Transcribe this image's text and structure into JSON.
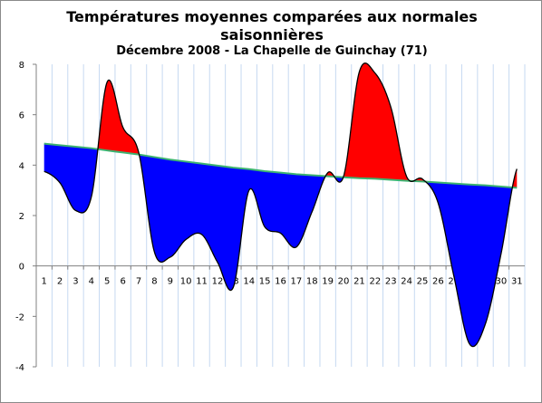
{
  "chart_data": {
    "type": "area",
    "title": "Températures moyennes comparées aux normales saisonnières",
    "subtitle": "Décembre 2008 - La Chapelle de Guinchay (71)",
    "xlabel": "",
    "ylabel": "",
    "ylim": [
      -4,
      8
    ],
    "yticks": [
      -4,
      -2,
      0,
      2,
      4,
      6,
      8
    ],
    "grid": true,
    "categories": [
      "1",
      "2",
      "3",
      "4",
      "5",
      "6",
      "7",
      "8",
      "9",
      "10",
      "11",
      "12",
      "13",
      "14",
      "15",
      "16",
      "17",
      "18",
      "19",
      "20",
      "21",
      "22",
      "23",
      "24",
      "25",
      "26",
      "27",
      "28",
      "29",
      "30",
      "31"
    ],
    "series": [
      {
        "values": [
          3.75,
          3.3,
          2.2,
          2.75,
          7.3,
          5.5,
          4.5,
          0.55,
          0.35,
          1.05,
          1.25,
          0.15,
          -0.85,
          3.0,
          1.55,
          1.3,
          0.75,
          2.15,
          3.7,
          3.55,
          7.7,
          7.65,
          6.3,
          3.55,
          3.45,
          2.5,
          -0.4,
          -3.1,
          -2.3,
          0.5,
          3.85
        ]
      },
      {
        "values": [
          4.85,
          4.79,
          4.73,
          4.67,
          4.58,
          4.5,
          4.42,
          4.32,
          4.22,
          4.14,
          4.06,
          3.98,
          3.9,
          3.84,
          3.76,
          3.7,
          3.64,
          3.6,
          3.56,
          3.52,
          3.48,
          3.46,
          3.42,
          3.38,
          3.35,
          3.31,
          3.27,
          3.23,
          3.2,
          3.15,
          3.1
        ]
      }
    ],
    "colors": {
      "above_normal": "#ff0000",
      "below_normal": "#0000ff",
      "normal_line": "#3cb371",
      "temperature_line": "#000000",
      "grid": "#c6d9f1",
      "axis": "#808080"
    }
  }
}
